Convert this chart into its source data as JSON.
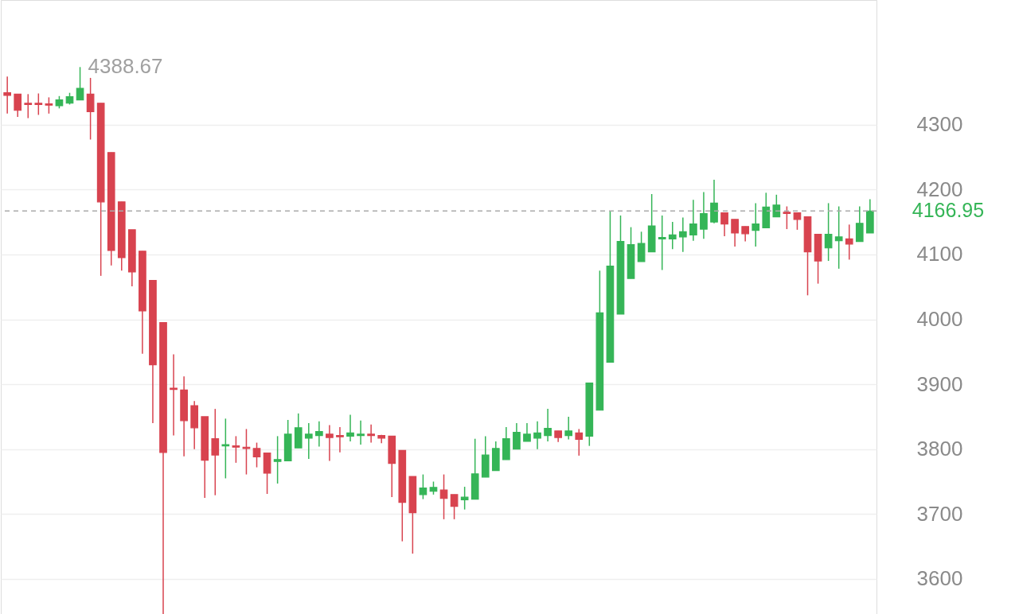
{
  "chart_data": {
    "type": "candlestick",
    "categories": [
      null,
      null,
      null,
      null,
      null,
      null,
      null,
      null,
      null,
      null,
      null,
      null,
      null,
      null,
      null,
      null,
      null,
      null,
      null,
      null,
      null,
      null,
      null,
      null,
      null,
      null,
      null,
      null,
      null,
      null,
      null,
      null,
      null,
      null,
      null,
      null,
      null,
      null,
      null,
      null,
      null,
      null,
      null,
      null,
      null,
      null,
      null,
      null,
      null,
      null,
      null,
      null,
      null,
      null,
      null,
      null,
      null,
      null,
      null,
      null,
      null,
      null,
      null,
      null,
      null,
      null,
      null,
      null,
      null,
      null,
      null,
      null,
      null,
      null,
      null,
      null,
      null,
      null,
      null,
      null,
      null,
      null,
      null,
      null
    ],
    "ohlc": [
      [
        4349,
        4374,
        4317,
        4345
      ],
      [
        4347,
        4347,
        4312,
        4322
      ],
      [
        4333,
        4347,
        4310,
        4331
      ],
      [
        4333,
        4348,
        4315,
        4331
      ],
      [
        4332,
        4342,
        4317,
        4330
      ],
      [
        4329,
        4344,
        4325,
        4338
      ],
      [
        4333,
        4349,
        4331,
        4343
      ],
      [
        4338,
        4388.67,
        4338,
        4356
      ],
      [
        4347,
        4372,
        4277,
        4320
      ],
      [
        4333,
        4333,
        4067,
        4181
      ],
      [
        4257,
        4257,
        4083,
        4106
      ],
      [
        4181,
        4181,
        4075,
        4095
      ],
      [
        4138,
        4138,
        4051,
        4073
      ],
      [
        4105,
        4105,
        3947,
        4013
      ],
      [
        4060,
        4060,
        3840,
        3930
      ],
      [
        3995,
        3995,
        3546,
        3795
      ],
      [
        3894,
        3946,
        3821,
        3892
      ],
      [
        3891,
        3912,
        3789,
        3844
      ],
      [
        3867,
        3874,
        3800,
        3833
      ],
      [
        3850,
        3850,
        3725,
        3783
      ],
      [
        3816,
        3862,
        3729,
        3791
      ],
      [
        3805,
        3847,
        3755,
        3807
      ],
      [
        3805,
        3820,
        3779,
        3803
      ],
      [
        3803,
        3831,
        3761,
        3801
      ],
      [
        3801,
        3810,
        3772,
        3788
      ],
      [
        3794,
        3794,
        3731,
        3763
      ],
      [
        3781,
        3820,
        3747,
        3784
      ],
      [
        3782,
        3845,
        3782,
        3823
      ],
      [
        3802,
        3855,
        3802,
        3833
      ],
      [
        3817,
        3840,
        3785,
        3823
      ],
      [
        3821,
        3843,
        3804,
        3827
      ],
      [
        3823,
        3837,
        3782,
        3818
      ],
      [
        3821,
        3834,
        3795,
        3819
      ],
      [
        3820,
        3853,
        3812,
        3825
      ],
      [
        3821,
        3844,
        3807,
        3823
      ],
      [
        3823,
        3838,
        3810,
        3821
      ],
      [
        3821,
        3822,
        3809,
        3817
      ],
      [
        3820,
        3820,
        3726,
        3778
      ],
      [
        3798,
        3798,
        3658,
        3718
      ],
      [
        3758,
        3758,
        3639,
        3702
      ],
      [
        3730,
        3761,
        3723,
        3740
      ],
      [
        3735,
        3750,
        3730,
        3741
      ],
      [
        3737,
        3761,
        3692,
        3724
      ],
      [
        3730,
        3730,
        3692,
        3712
      ],
      [
        3722,
        3742,
        3707,
        3726
      ],
      [
        3723,
        3816,
        3723,
        3762
      ],
      [
        3757,
        3820,
        3757,
        3791
      ],
      [
        3767,
        3812,
        3767,
        3801
      ],
      [
        3784,
        3834,
        3784,
        3816
      ],
      [
        3800,
        3840,
        3800,
        3826
      ],
      [
        3812,
        3840,
        3812,
        3823
      ],
      [
        3817,
        3843,
        3800,
        3825
      ],
      [
        3821,
        3862,
        3812,
        3832
      ],
      [
        3828,
        3828,
        3811,
        3818
      ],
      [
        3821,
        3850,
        3815,
        3828
      ],
      [
        3825,
        3831,
        3790,
        3815
      ],
      [
        3820,
        3902,
        3805,
        3902
      ],
      [
        3860,
        4075,
        3860,
        4010
      ],
      [
        3934,
        4166,
        3934,
        4082
      ],
      [
        4008,
        4160,
        4008,
        4120
      ],
      [
        4063,
        4142,
        4063,
        4115
      ],
      [
        4089,
        4135,
        4089,
        4117
      ],
      [
        4104,
        4193,
        4104,
        4144
      ],
      [
        4124,
        4160,
        4076,
        4126
      ],
      [
        4124,
        4150,
        4108,
        4130
      ],
      [
        4127,
        4157,
        4104,
        4135
      ],
      [
        4130,
        4184,
        4121,
        4147
      ],
      [
        4139,
        4196,
        4124,
        4163
      ],
      [
        4150,
        4215,
        4148,
        4179
      ],
      [
        4164,
        4164,
        4128,
        4147
      ],
      [
        4154,
        4154,
        4112,
        4133
      ],
      [
        4143,
        4143,
        4120,
        4132
      ],
      [
        4137,
        4179,
        4112,
        4147
      ],
      [
        4141,
        4195,
        4141,
        4173
      ],
      [
        4158,
        4192,
        4158,
        4176
      ],
      [
        4165,
        4174,
        4139,
        4163
      ],
      [
        4164,
        4164,
        4138,
        4154
      ],
      [
        4158,
        4158,
        4037,
        4104
      ],
      [
        4131,
        4131,
        4055,
        4090
      ],
      [
        4110,
        4179,
        4090,
        4131
      ],
      [
        4121,
        4174,
        4078,
        4127
      ],
      [
        4124,
        4146,
        4092,
        4116
      ],
      [
        4120,
        4174,
        4120,
        4148
      ],
      [
        4133,
        4185,
        4133,
        4166.95
      ]
    ],
    "colors": [
      "#d8434f",
      "#d8434f",
      "#d8434f",
      "#d8434f",
      "#d8434f",
      "#35b557",
      "#35b557",
      "#35b557",
      "#d8434f",
      "#d8434f",
      "#d8434f",
      "#d8434f",
      "#d8434f",
      "#d8434f",
      "#d8434f",
      "#d8434f",
      "#d8434f",
      "#d8434f",
      "#d8434f",
      "#d8434f",
      "#d8434f",
      "#35b557",
      "#d8434f",
      "#d8434f",
      "#d8434f",
      "#d8434f",
      "#35b557",
      "#35b557",
      "#35b557",
      "#35b557",
      "#35b557",
      "#d8434f",
      "#d8434f",
      "#35b557",
      "#35b557",
      "#d8434f",
      "#d8434f",
      "#d8434f",
      "#d8434f",
      "#d8434f",
      "#35b557",
      "#35b557",
      "#d8434f",
      "#d8434f",
      "#35b557",
      "#35b557",
      "#35b557",
      "#35b557",
      "#35b557",
      "#35b557",
      "#35b557",
      "#35b557",
      "#35b557",
      "#d8434f",
      "#35b557",
      "#d8434f",
      "#35b557",
      "#35b557",
      "#35b557",
      "#35b557",
      "#35b557",
      "#35b557",
      "#35b557",
      "#35b557",
      "#35b557",
      "#35b557",
      "#35b557",
      "#35b557",
      "#35b557",
      "#d8434f",
      "#d8434f",
      "#d8434f",
      "#35b557",
      "#35b557",
      "#35b557",
      "#d8434f",
      "#d8434f",
      "#d8434f",
      "#d8434f",
      "#35b557",
      "#35b557",
      "#d8434f",
      "#35b557",
      "#35b557"
    ],
    "ylim": [
      3546,
      4492
    ],
    "yticks": [
      3600,
      3700,
      3800,
      3900,
      4000,
      4100,
      4200,
      4300
    ],
    "grid": "y",
    "tick_labels": "y",
    "ref_lines": [
      {
        "axis": "y",
        "value": 4166.95,
        "label": "4166.95",
        "color": "#aaaaaa",
        "line_style": "dashed"
      }
    ],
    "annotations": [
      "4388.67"
    ]
  }
}
